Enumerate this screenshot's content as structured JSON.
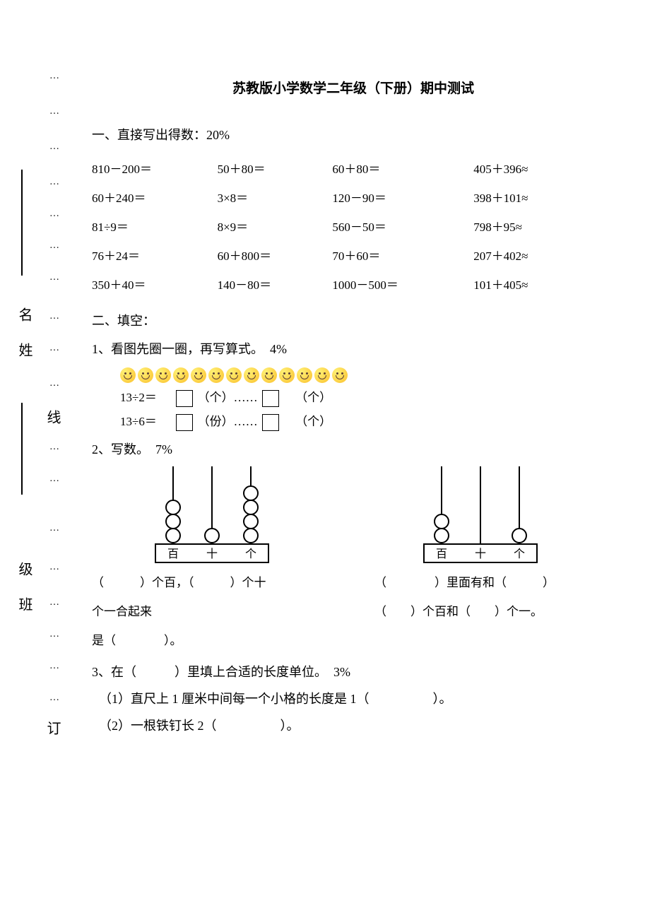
{
  "title": "苏教版小学数学二年级（下册）期中测试",
  "margin": {
    "chars": [
      "名",
      "姓",
      "线",
      "级",
      "班",
      "订"
    ],
    "dots": "…"
  },
  "section1": {
    "header": "一、直接写出得数：20%",
    "rows": [
      [
        "810－200＝",
        "50＋80＝",
        "60＋80＝",
        "405＋396≈"
      ],
      [
        "60＋240＝",
        "3×8＝",
        "120－90＝",
        "398＋101≈"
      ],
      [
        "81÷9＝",
        "8×9＝",
        "560－50＝",
        "798＋95≈"
      ],
      [
        "76＋24＝",
        "60＋800＝",
        "70＋60＝",
        "207＋402≈"
      ],
      [
        "350＋40＝",
        "140－80＝",
        "1000－500＝",
        "101＋405≈"
      ]
    ]
  },
  "section2": {
    "header": "二、填空：",
    "q1": {
      "title": "1、看图先圈一圈，再写算式。　4%",
      "smiley_count": 13,
      "eq1_lhs": "13÷2＝",
      "eq1_unit1": "（个）……",
      "eq1_unit2": "（个）",
      "eq2_lhs": "13÷6＝",
      "eq2_unit1": "（份）……",
      "eq2_unit2": "（个）"
    },
    "q2": {
      "title": "2、写数。　7%",
      "abacus1": {
        "labels": [
          "百",
          "十",
          "个"
        ],
        "beads": [
          3,
          1,
          4
        ]
      },
      "abacus2": {
        "labels": [
          "百",
          "十",
          "个"
        ],
        "beads": [
          2,
          0,
          1
        ]
      },
      "desc_left_line1": "（　　　）个百，（　　　）个十",
      "desc_left_line2": "个一合起来",
      "desc_left_line3": "是（　　　　）。",
      "desc_right_line1": "（　　　　）里面有和（　　　）",
      "desc_right_line2": "（　　）个百和（　　）个一。"
    },
    "q3": {
      "title": "3、在（　　　）里填上合适的长度单位。　3%",
      "item1": "（1）直尺上 1 厘米中间每一个小格的长度是 1（　　　　　）。",
      "item2": "（2）一根铁钉长 2（　　　　　）。"
    }
  }
}
